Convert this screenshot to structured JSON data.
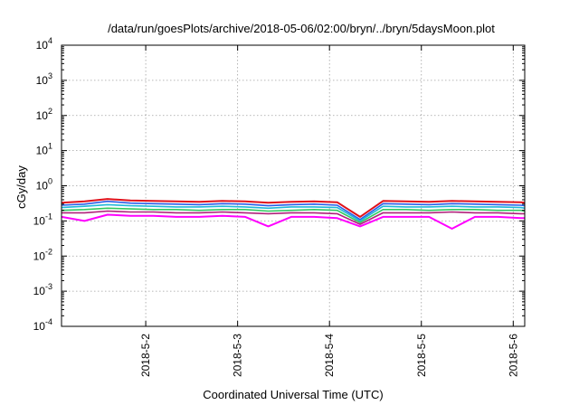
{
  "chart_data": {
    "type": "line",
    "title": "/data/run/goesPlots/archive/2018-05-06/02:00/bryn/../bryn/5daysMoon.plot",
    "xlabel": "Coordinated Universal Time (UTC)",
    "ylabel": "cGy/day",
    "y_scale": "log",
    "ylim": [
      0.0001,
      10000
    ],
    "y_ticks": [
      {
        "value": 0.0001,
        "base": "10",
        "exp": "-4"
      },
      {
        "value": 0.001,
        "base": "10",
        "exp": "-3"
      },
      {
        "value": 0.01,
        "base": "10",
        "exp": "-2"
      },
      {
        "value": 0.1,
        "base": "10",
        "exp": "-1"
      },
      {
        "value": 1,
        "base": "10",
        "exp": "0"
      },
      {
        "value": 10,
        "base": "10",
        "exp": "1"
      },
      {
        "value": 100,
        "base": "10",
        "exp": "2"
      },
      {
        "value": 1000,
        "base": "10",
        "exp": "3"
      },
      {
        "value": 10000,
        "base": "10",
        "exp": "4"
      }
    ],
    "xlim": [
      "2018-05-01T02:00",
      "2018-05-06T03:00"
    ],
    "x_ticks": [
      {
        "value": "2018-05-02T00:00",
        "label": "2018-5-2"
      },
      {
        "value": "2018-05-03T00:00",
        "label": "2018-5-3"
      },
      {
        "value": "2018-05-04T00:00",
        "label": "2018-5-4"
      },
      {
        "value": "2018-05-05T00:00",
        "label": "2018-5-5"
      },
      {
        "value": "2018-05-06T00:00",
        "label": "2018-5-6"
      }
    ],
    "grid": true,
    "x": [
      "2018-05-01T02:00",
      "2018-05-01T08:00",
      "2018-05-01T14:00",
      "2018-05-01T20:00",
      "2018-05-02T02:00",
      "2018-05-02T08:00",
      "2018-05-02T14:00",
      "2018-05-02T20:00",
      "2018-05-03T02:00",
      "2018-05-03T08:00",
      "2018-05-03T14:00",
      "2018-05-03T20:00",
      "2018-05-04T02:00",
      "2018-05-04T08:00",
      "2018-05-04T14:00",
      "2018-05-04T20:00",
      "2018-05-05T02:00",
      "2018-05-05T08:00",
      "2018-05-05T14:00",
      "2018-05-05T20:00",
      "2018-05-06T02:00",
      "2018-05-06T03:00"
    ],
    "series": [
      {
        "color": "#e0101a",
        "values": [
          0.33,
          0.36,
          0.42,
          0.38,
          0.37,
          0.36,
          0.35,
          0.37,
          0.36,
          0.33,
          0.35,
          0.36,
          0.34,
          0.13,
          0.37,
          0.36,
          0.35,
          0.37,
          0.36,
          0.35,
          0.34,
          0.33
        ]
      },
      {
        "color": "#2a5ee8",
        "values": [
          0.28,
          0.3,
          0.36,
          0.32,
          0.31,
          0.3,
          0.29,
          0.31,
          0.3,
          0.27,
          0.29,
          0.3,
          0.28,
          0.11,
          0.31,
          0.3,
          0.29,
          0.31,
          0.3,
          0.29,
          0.28,
          0.27
        ]
      },
      {
        "color": "#20b8d8",
        "values": [
          0.24,
          0.26,
          0.29,
          0.27,
          0.26,
          0.25,
          0.25,
          0.26,
          0.25,
          0.23,
          0.25,
          0.25,
          0.24,
          0.1,
          0.26,
          0.25,
          0.25,
          0.26,
          0.25,
          0.25,
          0.24,
          0.23
        ]
      },
      {
        "color": "#30c860",
        "values": [
          0.2,
          0.21,
          0.23,
          0.22,
          0.21,
          0.21,
          0.2,
          0.21,
          0.21,
          0.19,
          0.2,
          0.21,
          0.2,
          0.09,
          0.21,
          0.21,
          0.2,
          0.21,
          0.21,
          0.2,
          0.2,
          0.19
        ]
      },
      {
        "color": "#b0207a",
        "values": [
          0.17,
          0.17,
          0.19,
          0.18,
          0.18,
          0.17,
          0.17,
          0.18,
          0.17,
          0.16,
          0.17,
          0.17,
          0.16,
          0.08,
          0.17,
          0.17,
          0.17,
          0.18,
          0.17,
          0.17,
          0.16,
          0.16
        ]
      },
      {
        "color": "#ff00ff",
        "values": [
          0.13,
          0.1,
          0.15,
          0.14,
          0.14,
          0.13,
          0.13,
          0.14,
          0.13,
          0.07,
          0.13,
          0.13,
          0.12,
          0.07,
          0.13,
          0.13,
          0.13,
          0.06,
          0.13,
          0.13,
          0.12,
          0.12
        ]
      }
    ]
  }
}
